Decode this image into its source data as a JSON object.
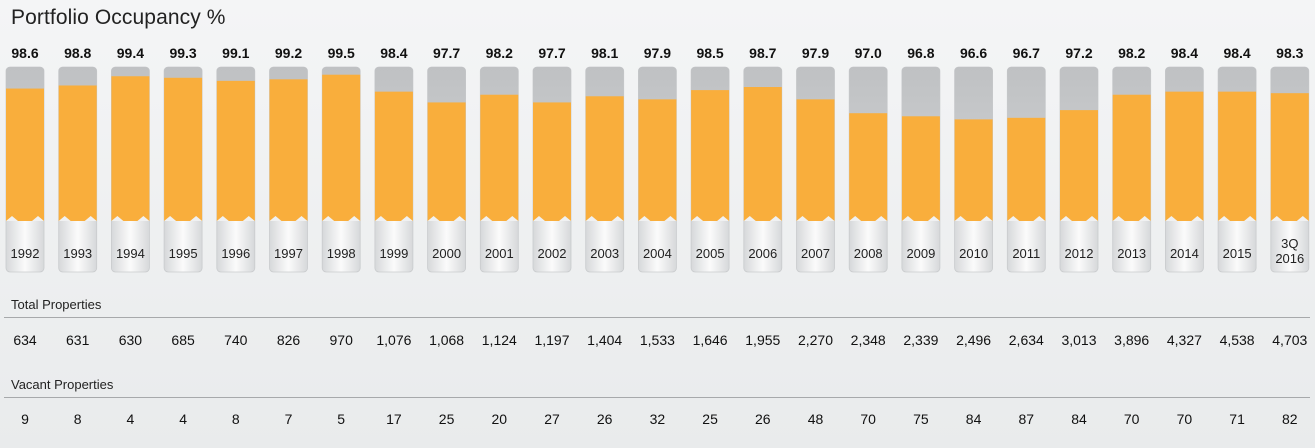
{
  "chart_data": {
    "type": "bar",
    "title": "Portfolio Occupancy %",
    "categories": [
      "1992",
      "1993",
      "1994",
      "1995",
      "1996",
      "1997",
      "1998",
      "1999",
      "2000",
      "2001",
      "2002",
      "2003",
      "2004",
      "2005",
      "2006",
      "2007",
      "2008",
      "2009",
      "2010",
      "2011",
      "2012",
      "2013",
      "2014",
      "2015",
      "3Q 2016"
    ],
    "series": [
      {
        "values": [
          98.6,
          98.8,
          99.4,
          99.3,
          99.1,
          99.2,
          99.5,
          98.4,
          97.7,
          98.2,
          97.7,
          98.1,
          97.9,
          98.5,
          98.7,
          97.9,
          97.0,
          96.8,
          96.6,
          96.7,
          97.2,
          98.2,
          98.4,
          98.4,
          98.3
        ]
      }
    ],
    "value_labels": [
      "98.6",
      "98.8",
      "99.4",
      "99.3",
      "99.1",
      "99.2",
      "99.5",
      "98.4",
      "97.7",
      "98.2",
      "97.7",
      "98.1",
      "97.9",
      "98.5",
      "98.7",
      "97.9",
      "97.0",
      "96.8",
      "96.6",
      "96.7",
      "97.2",
      "98.2",
      "98.4",
      "98.4",
      "98.3"
    ],
    "ylim": [
      0,
      100
    ],
    "colors": {
      "fill": "#f9ae3c",
      "empty": "#c8cacc",
      "base": "#e8e9ea"
    }
  },
  "table": {
    "total_label": "Total Properties",
    "total": [
      "634",
      "631",
      "630",
      "685",
      "740",
      "826",
      "970",
      "1,076",
      "1,068",
      "1,124",
      "1,197",
      "1,404",
      "1,533",
      "1,646",
      "1,955",
      "2,270",
      "2,348",
      "2,339",
      "2,496",
      "2,634",
      "3,013",
      "3,896",
      "4,327",
      "4,538",
      "4,703"
    ],
    "vacant_label": "Vacant  Properties",
    "vacant": [
      "9",
      "8",
      "4",
      "4",
      "8",
      "7",
      "5",
      "17",
      "25",
      "20",
      "27",
      "26",
      "32",
      "25",
      "26",
      "48",
      "70",
      "75",
      "84",
      "87",
      "84",
      "70",
      "70",
      "71",
      "82"
    ]
  }
}
